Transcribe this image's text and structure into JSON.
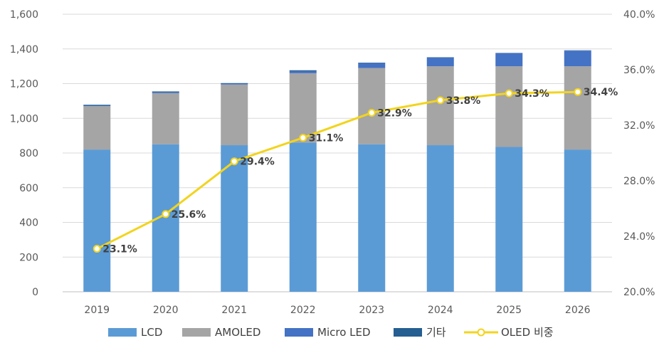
{
  "chart_data": {
    "type": "bar",
    "stacked": true,
    "categories": [
      "2019",
      "2020",
      "2021",
      "2022",
      "2023",
      "2024",
      "2025",
      "2026"
    ],
    "series": [
      {
        "name": "LCD",
        "axis": "left",
        "color": "#5b9bd5",
        "values": [
          820,
          850,
          845,
          860,
          850,
          845,
          835,
          820
        ]
      },
      {
        "name": "AMOLED",
        "axis": "left",
        "color": "#a5a5a5",
        "values": [
          250,
          295,
          350,
          400,
          440,
          455,
          465,
          480
        ]
      },
      {
        "name": "Micro LED",
        "axis": "left",
        "color": "#4472c4",
        "values": [
          3,
          5,
          5,
          12,
          28,
          50,
          75,
          90
        ]
      },
      {
        "name": "기타",
        "axis": "left",
        "color": "#255e91",
        "values": [
          5,
          5,
          3,
          5,
          3,
          2,
          2,
          2
        ]
      },
      {
        "name": "OLED 비중",
        "type": "line",
        "axis": "right",
        "color": "#f2d41d",
        "values": [
          23.1,
          25.6,
          29.4,
          31.1,
          32.9,
          33.8,
          34.3,
          34.4
        ],
        "labels": [
          "23.1%",
          "25.6%",
          "29.4%",
          "31.1%",
          "32.9%",
          "33.8%",
          "34.3%",
          "34.4%"
        ]
      }
    ],
    "y_left": {
      "min": 0,
      "max": 1600,
      "ticks": [
        0,
        200,
        400,
        600,
        800,
        1000,
        1200,
        1400,
        1600
      ],
      "tick_labels": [
        "0",
        "200",
        "400",
        "600",
        "800",
        "1,000",
        "1,200",
        "1,400",
        "1,600"
      ]
    },
    "y_right": {
      "min": 20.0,
      "max": 40.0,
      "ticks": [
        20.0,
        24.0,
        28.0,
        32.0,
        36.0,
        40.0
      ],
      "tick_labels": [
        "20.0%",
        "24.0%",
        "28.0%",
        "32.0%",
        "36.0%",
        "40.0%"
      ]
    },
    "legend": {
      "position": "bottom"
    },
    "grid": true
  }
}
